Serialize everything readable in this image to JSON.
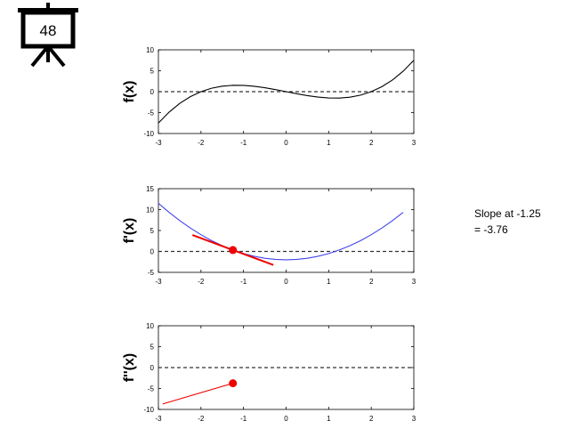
{
  "slide_number": "48",
  "annotation": [
    "Slope at -1.25",
    "= -3.76"
  ],
  "chart_data": [
    {
      "type": "line",
      "ylabel": "f(x)",
      "xlim": [
        -3,
        3
      ],
      "ylim": [
        -10,
        10
      ],
      "xticks": [
        -3,
        -2,
        -1,
        0,
        1,
        2,
        3
      ],
      "yticks": [
        -10,
        -5,
        0,
        5,
        10
      ],
      "hline": 0,
      "series": [
        {
          "color": "#000000",
          "style": "line",
          "x": [
            -3,
            -2.75,
            -2.5,
            -2.25,
            -2,
            -1.75,
            -1.5,
            -1.25,
            -1,
            -0.75,
            -0.5,
            -0.25,
            0,
            0.25,
            0.5,
            0.75,
            1,
            1.25,
            1.5,
            1.75,
            2,
            2.25,
            2.5,
            2.75,
            3
          ],
          "values": [
            -7.5,
            -4.9,
            -2.81,
            -1.2,
            0,
            0.82,
            1.31,
            1.52,
            1.5,
            1.29,
            0.94,
            0.49,
            0,
            -0.49,
            -0.94,
            -1.29,
            -1.5,
            -1.52,
            -1.31,
            -0.82,
            0,
            1.2,
            2.81,
            4.9,
            7.5
          ]
        }
      ]
    },
    {
      "type": "line",
      "ylabel": "f'(x)",
      "xlim": [
        -3,
        3
      ],
      "ylim": [
        -5,
        15
      ],
      "xticks": [
        -3,
        -2,
        -1,
        0,
        1,
        2,
        3
      ],
      "yticks": [
        -5,
        0,
        5,
        10,
        15
      ],
      "hline": 0,
      "series": [
        {
          "color": "#4444ee",
          "style": "line",
          "x": [
            -3,
            -2.75,
            -2.5,
            -2.25,
            -2,
            -1.75,
            -1.5,
            -1.25,
            -1,
            -0.75,
            -0.5,
            -0.25,
            0,
            0.25,
            0.5,
            0.75,
            1,
            1.25,
            1.5,
            1.75,
            2,
            2.25,
            2.5,
            2.75
          ],
          "values": [
            11.5,
            9.34,
            7.38,
            5.59,
            4,
            2.59,
            1.38,
            0.34,
            -0.5,
            -1.16,
            -1.63,
            -1.91,
            -2,
            -1.91,
            -1.63,
            -1.16,
            -0.5,
            0.34,
            1.38,
            2.59,
            4,
            5.59,
            7.38,
            9.34
          ]
        },
        {
          "color": "#ee0000",
          "style": "thick",
          "x": [
            -2.2,
            -0.3
          ],
          "values": [
            3.91,
            -3.23
          ]
        },
        {
          "color": "#ee0000",
          "style": "point",
          "x": [
            -1.25
          ],
          "values": [
            0.34
          ]
        }
      ]
    },
    {
      "type": "line",
      "ylabel": "f''(x)",
      "xlim": [
        -3,
        3
      ],
      "ylim": [
        -10,
        10
      ],
      "xticks": [
        -3,
        -2,
        -1,
        0,
        1,
        2,
        3
      ],
      "yticks": [
        -10,
        -5,
        0,
        5,
        10
      ],
      "hline": 0,
      "series": [
        {
          "color": "#ee0000",
          "style": "line",
          "x": [
            -2.9,
            -1.25
          ],
          "values": [
            -8.7,
            -3.75
          ]
        },
        {
          "color": "#ee0000",
          "style": "point",
          "x": [
            -1.25
          ],
          "values": [
            -3.75
          ]
        }
      ]
    }
  ]
}
